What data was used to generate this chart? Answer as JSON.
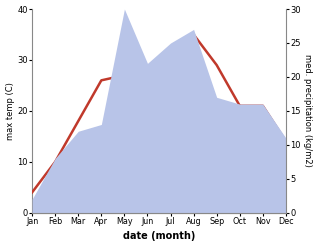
{
  "months": [
    "Jan",
    "Feb",
    "Mar",
    "Apr",
    "May",
    "Jun",
    "Jul",
    "Aug",
    "Sep",
    "Oct",
    "Nov",
    "Dec"
  ],
  "temp_max": [
    4,
    10,
    18,
    26,
    27,
    27,
    31,
    35,
    29,
    21,
    21,
    14
  ],
  "precipitation": [
    2,
    8,
    12,
    13,
    30,
    22,
    25,
    27,
    17,
    16,
    16,
    11
  ],
  "temp_color": "#c0392b",
  "precip_fill_color": "#b8c4e8",
  "temp_ylim": [
    0,
    40
  ],
  "precip_ylim": [
    0,
    30
  ],
  "temp_yticks": [
    0,
    10,
    20,
    30,
    40
  ],
  "precip_yticks": [
    0,
    5,
    10,
    15,
    20,
    25,
    30
  ],
  "xlabel": "date (month)",
  "ylabel_left": "max temp (C)",
  "ylabel_right": "med. precipitation (kg/m2)",
  "background_color": "#ffffff",
  "linewidth": 1.8
}
